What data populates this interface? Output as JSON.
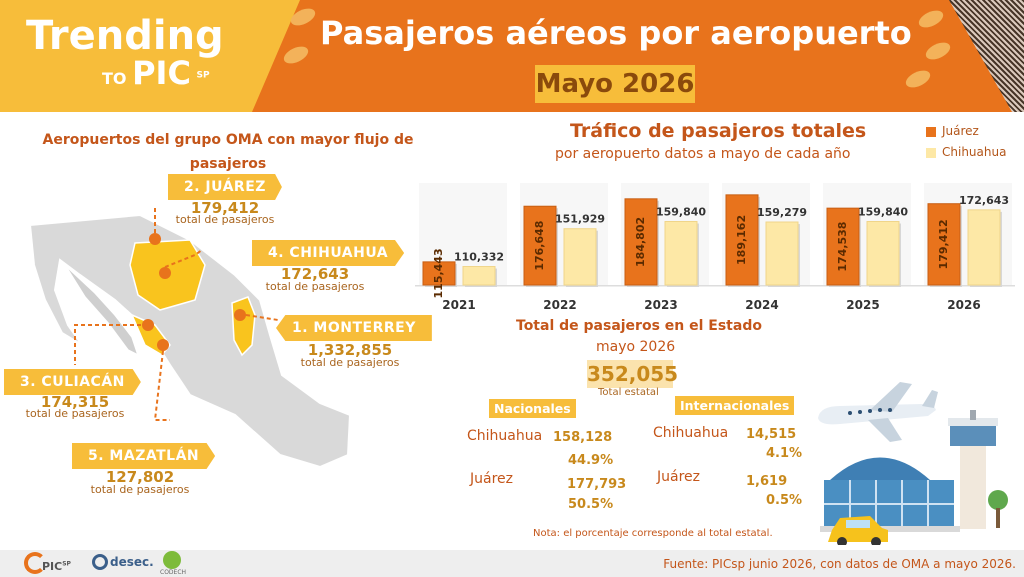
{
  "header": {
    "brand_line1": "Trending",
    "brand_to": "TO",
    "brand_pic": "PIC",
    "brand_sp": "SP",
    "title": "Pasajeros aéreos por aeropuerto",
    "subtitle": "Mayo 2026"
  },
  "map_section": {
    "title": "Aeropuertos del grupo OMA con mayor flujo de pasajeros",
    "unit_label": "total de pasajeros",
    "airports": [
      {
        "rank_label": "2. JUÁREZ",
        "value": "179,412"
      },
      {
        "rank_label": "4. CHIHUAHUA",
        "value": "172,643"
      },
      {
        "rank_label": "1. MONTERREY",
        "value": "1,332,855"
      },
      {
        "rank_label": "3. CULIACÁN",
        "value": "174,315"
      },
      {
        "rank_label": "5. MAZATLÁN",
        "value": "127,802"
      }
    ]
  },
  "chart_data": {
    "type": "bar",
    "title": "Tráfico de pasajeros totales",
    "subtitle": "por aeropuerto datos a mayo de cada año",
    "categories": [
      "2021",
      "2022",
      "2023",
      "2024",
      "2025",
      "2026"
    ],
    "series": [
      {
        "name": "Juárez",
        "color": "#e8731c",
        "values": [
          115443,
          176648,
          184802,
          189162,
          174538,
          179412
        ],
        "labels": [
          "115,443",
          "176,648",
          "184,802",
          "189,162",
          "174,538",
          "179,412"
        ]
      },
      {
        "name": "Chihuahua",
        "color": "#fde8a6",
        "values": [
          110332,
          151929,
          159840,
          159279,
          159840,
          172643
        ],
        "labels": [
          "110,332",
          "151,929",
          "159,840",
          "159,279",
          "159,840",
          "172,643"
        ]
      }
    ],
    "ylim": [
      0,
      200000
    ],
    "grid": false,
    "legend": "top-right"
  },
  "state": {
    "title": "Total de pasajeros en el Estado",
    "month": "mayo 2026",
    "total": "352,055",
    "total_caption": "Total estatal",
    "nacionales_label": "Nacionales",
    "internacionales_label": "Internacionales",
    "nacionales": [
      {
        "city": "Chihuahua",
        "value": "158,128",
        "pct": "44.9%"
      },
      {
        "city": "Juárez",
        "value": "177,793",
        "pct": "50.5%"
      }
    ],
    "internacionales": [
      {
        "city": "Chihuahua",
        "value": "14,515",
        "pct": "4.1%"
      },
      {
        "city": "Juárez",
        "value": "1,619",
        "pct": "0.5%"
      }
    ],
    "note": "Nota: el porcentaje corresponde al total estatal."
  },
  "footer": {
    "logo1": "PIC",
    "logo1_sp": "SP",
    "logo2": "desec.",
    "logo3": "CODECH",
    "source": "Fuente: PICsp junio 2026, con datos de OMA a mayo 2026."
  }
}
